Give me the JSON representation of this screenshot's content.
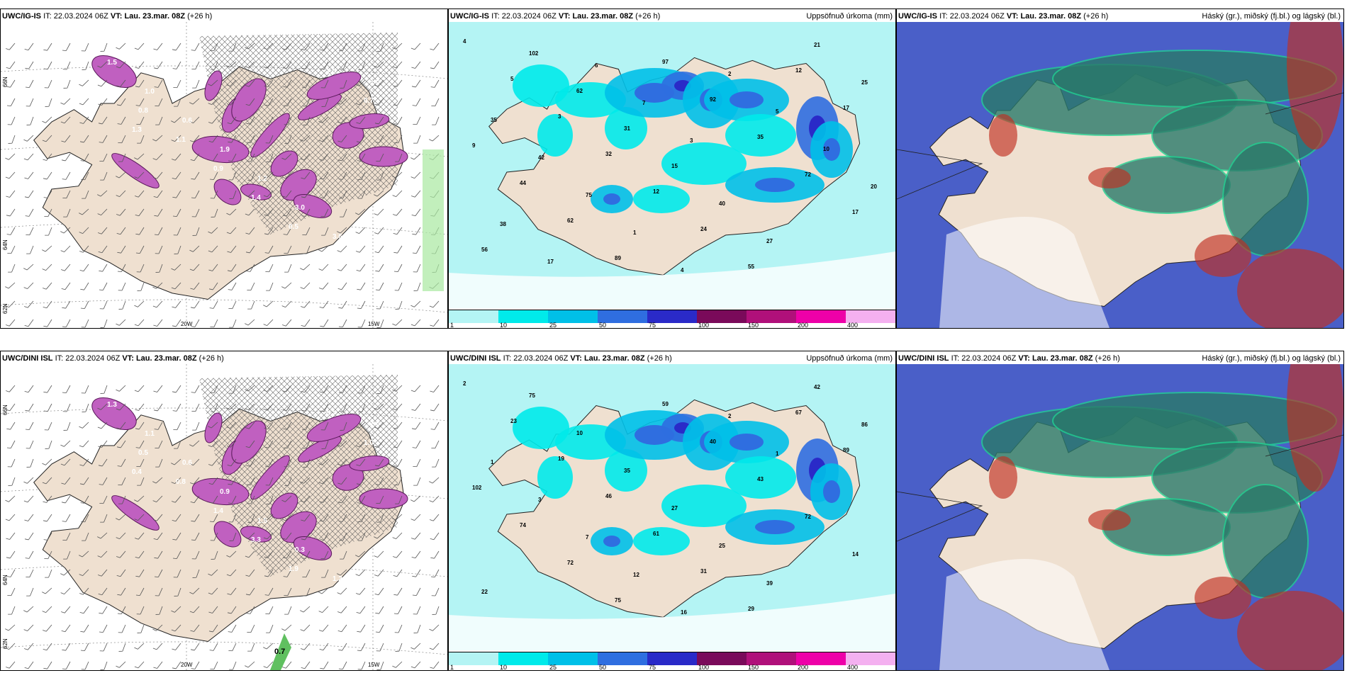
{
  "panels": [
    {
      "model": "UWC/IG-IS",
      "it_label": "IT:",
      "it": "22.03.2024 06Z",
      "vt_label": "VT:",
      "vt": "Lau. 23.mar. 08Z",
      "lead": "(+26 h)",
      "right_title": "",
      "lat_labels": [
        "66N",
        "64N",
        "62N"
      ],
      "lon_labels": [
        "20W",
        "15W"
      ],
      "values": [
        "1.5",
        "1.0",
        "0.6",
        "1.9",
        "1.2",
        "3.0",
        "3.6",
        "1.5",
        "0.8",
        "1.1",
        "0.9",
        "1.4",
        "0.5",
        "1.0",
        "0.7",
        "1.3"
      ]
    },
    {
      "model": "UWC/IG-IS",
      "it_label": "IT:",
      "it": "22.03.2024 06Z",
      "vt_label": "VT:",
      "vt": "Lau. 23.mar. 08Z",
      "lead": "(+26 h)",
      "right_title": "Uppsöfnuð úrkoma (mm)",
      "values": [
        "4",
        "5",
        "3",
        "32",
        "12",
        "24",
        "55",
        "12",
        "17",
        "9",
        "44",
        "62",
        "89",
        "97",
        "92",
        "35",
        "72",
        "17",
        "56",
        "102",
        "62",
        "31",
        "15",
        "40",
        "27",
        "21",
        "25",
        "35",
        "42",
        "75",
        "1",
        "4",
        "2",
        "5",
        "10",
        "20",
        "38",
        "17",
        "6",
        "7",
        "3"
      ]
    },
    {
      "model": "UWC/IG-IS",
      "it_label": "IT:",
      "it": "22.03.2024 06Z",
      "vt_label": "VT:",
      "vt": "Lau. 23.mar. 08Z",
      "lead": "(+26 h)",
      "right_title": "Háský (gr.), miðský (fj.bl.) og lágský (bl.)"
    },
    {
      "model": "UWC/DINI ISL",
      "it_label": "IT:",
      "it": "22.03.2024 06Z",
      "vt_label": "VT:",
      "vt": "Lau. 23.mar. 08Z",
      "lead": "(+26 h)",
      "right_title": "",
      "lat_labels": [
        "66N",
        "64N",
        "62N"
      ],
      "lon_labels": [
        "20W",
        "15W"
      ],
      "bottom_value": "0.7",
      "values": [
        "1.3",
        "1.1",
        "0.6",
        "0.9",
        "1.5",
        "0.3",
        "1.2",
        "2.6",
        "0.5",
        "0.8",
        "1.4",
        "3.3",
        "1.9",
        "0.7",
        "1.0",
        "0.4"
      ]
    },
    {
      "model": "UWC/DINI ISL",
      "it_label": "IT:",
      "it": "22.03.2024 06Z",
      "vt_label": "VT:",
      "vt": "Lau. 23.mar. 08Z",
      "lead": "(+26 h)",
      "right_title": "Uppsöfnuð úrkoma (mm)",
      "values": [
        "2",
        "23",
        "19",
        "46",
        "61",
        "31",
        "29",
        "67",
        "89",
        "102",
        "74",
        "72",
        "75",
        "59",
        "40",
        "43",
        "72",
        "14",
        "22",
        "75",
        "10",
        "35",
        "27",
        "25",
        "39",
        "42",
        "86",
        "1",
        "3",
        "7",
        "12",
        "16",
        "2",
        "1"
      ]
    },
    {
      "model": "UWC/DINI ISL",
      "it_label": "IT:",
      "it": "22.03.2024 06Z",
      "vt_label": "VT:",
      "vt": "Lau. 23.mar. 08Z",
      "lead": "(+26 h)",
      "right_title": "Háský (gr.), miðský (fj.bl.) og lágský (bl.)"
    }
  ],
  "precip_legend": {
    "levels": [
      "1",
      "10",
      "25",
      "50",
      "75",
      "100",
      "150",
      "200",
      "400"
    ],
    "colors": [
      "#b4f4f4",
      "#00eaea",
      "#00c0e8",
      "#2f6ee0",
      "#2a2ac8",
      "#7a0a5a",
      "#b0107a",
      "#ee00a8",
      "#f4b0f0"
    ]
  },
  "colors": {
    "land": "#efe0d0",
    "sea_precip": "#b4f4f4",
    "snow_purple": "#c060c0",
    "cloud_high": "#4a5fc8",
    "cloud_mid": "#2a7a6a",
    "cloud_low": "#c03020"
  }
}
